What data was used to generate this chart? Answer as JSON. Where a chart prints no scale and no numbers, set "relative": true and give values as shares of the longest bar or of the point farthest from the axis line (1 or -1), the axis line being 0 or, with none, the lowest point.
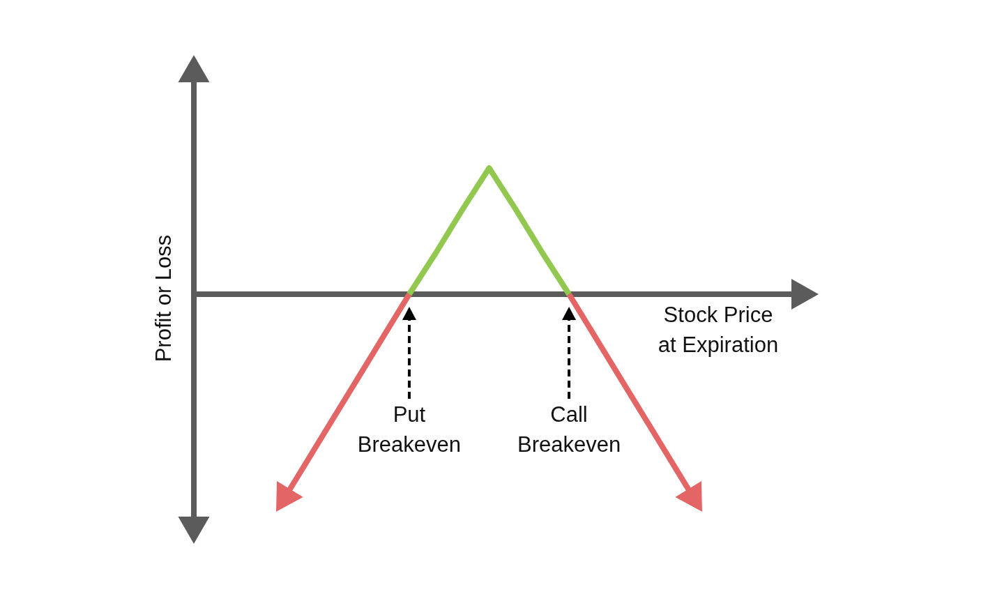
{
  "chart_data": {
    "type": "line",
    "relative": true,
    "categories": [
      null,
      null,
      null,
      null,
      null,
      null,
      null,
      null,
      null,
      null,
      null,
      null,
      null,
      null,
      null,
      null,
      null
    ],
    "series": [
      {
        "color": "#e46565",
        "values": [
          -1,
          -0.8,
          -0.6,
          -0.4,
          -0.2,
          0,
          null,
          null,
          null,
          null,
          null,
          0,
          -0.2,
          -0.4,
          -0.6,
          -0.8,
          -1
        ]
      },
      {
        "color": "#92c84f",
        "values": [
          null,
          null,
          null,
          null,
          null,
          0,
          0.19,
          0.39,
          0.58,
          0.39,
          0.19,
          0,
          null,
          null,
          null,
          null,
          null
        ]
      }
    ],
    "xlabel": "Stock Price\nat Expiration",
    "ylabel": "Profit or Loss",
    "annotations": [
      "Put\nBreakeven",
      "Call\nBreakeven"
    ]
  }
}
